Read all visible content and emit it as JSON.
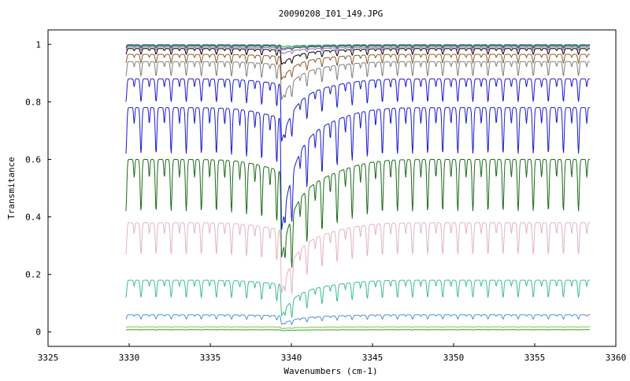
{
  "chart_data": {
    "type": "line",
    "title": "20090208_I01_149.JPG",
    "xlabel": "Wavenumbers (cm-1)",
    "ylabel": "Transmitance",
    "xlim": [
      3325,
      3360
    ],
    "ylim": [
      -0.05,
      1.05
    ],
    "x_ticks": [
      3325,
      3330,
      3335,
      3340,
      3345,
      3350,
      3355,
      3360
    ],
    "y_ticks": [
      0,
      0.2,
      0.4,
      0.6,
      0.8,
      1
    ],
    "x_tick_labels": [
      "3325",
      "3330",
      "3335",
      "3340",
      "3345",
      "3350",
      "3355",
      "3360"
    ],
    "y_tick_labels": [
      "0",
      "0.2",
      "0.4",
      "0.6",
      "0.8",
      "1"
    ],
    "grid": false,
    "x_range_data": [
      3329.8,
      3358.4
    ],
    "main_dip_x": 3339.4,
    "periodic_dip_spacing": 0.93,
    "series": [
      {
        "color": "#2ca02c",
        "baseline": 0.999,
        "dip_depth": 0.004,
        "main_dip": 0.006
      },
      {
        "color": "#1f77b4",
        "baseline": 0.997,
        "dip_depth": 0.006,
        "main_dip": 0.01
      },
      {
        "color": "#555555",
        "baseline": 0.995,
        "dip_depth": 0.008,
        "main_dip": 0.012
      },
      {
        "color": "#9467bd",
        "baseline": 0.99,
        "dip_depth": 0.01,
        "main_dip": 0.02
      },
      {
        "color": "#000000",
        "baseline": 0.985,
        "dip_depth": 0.02,
        "main_dip": 0.05
      },
      {
        "color": "#8c5a2b",
        "baseline": 0.965,
        "dip_depth": 0.03,
        "main_dip": 0.08
      },
      {
        "color": "#7f7f7f",
        "baseline": 0.94,
        "dip_depth": 0.05,
        "main_dip": 0.12
      },
      {
        "color": "#1a1acd",
        "baseline": 0.88,
        "dip_depth": 0.08,
        "main_dip": 0.2
      },
      {
        "color": "#1a1acd",
        "baseline": 0.78,
        "dip_depth": 0.16,
        "main_dip": 0.39
      },
      {
        "color": "#1a6b1a",
        "baseline": 0.6,
        "dip_depth": 0.18,
        "main_dip": 0.3
      },
      {
        "color": "#e2b4c0",
        "baseline": 0.38,
        "dip_depth": 0.11,
        "main_dip": 0.22
      },
      {
        "color": "#3cbf8a",
        "baseline": 0.18,
        "dip_depth": 0.06,
        "main_dip": 0.11
      },
      {
        "color": "#4f8fd0",
        "baseline": 0.06,
        "dip_depth": 0.015,
        "main_dip": 0.03
      },
      {
        "color": "#7fc242",
        "baseline": 0.018,
        "dip_depth": 0.002,
        "main_dip": 0.006
      },
      {
        "color": "#2ca02c",
        "baseline": 0.008,
        "dip_depth": 0.001,
        "main_dip": 0.003
      }
    ]
  }
}
